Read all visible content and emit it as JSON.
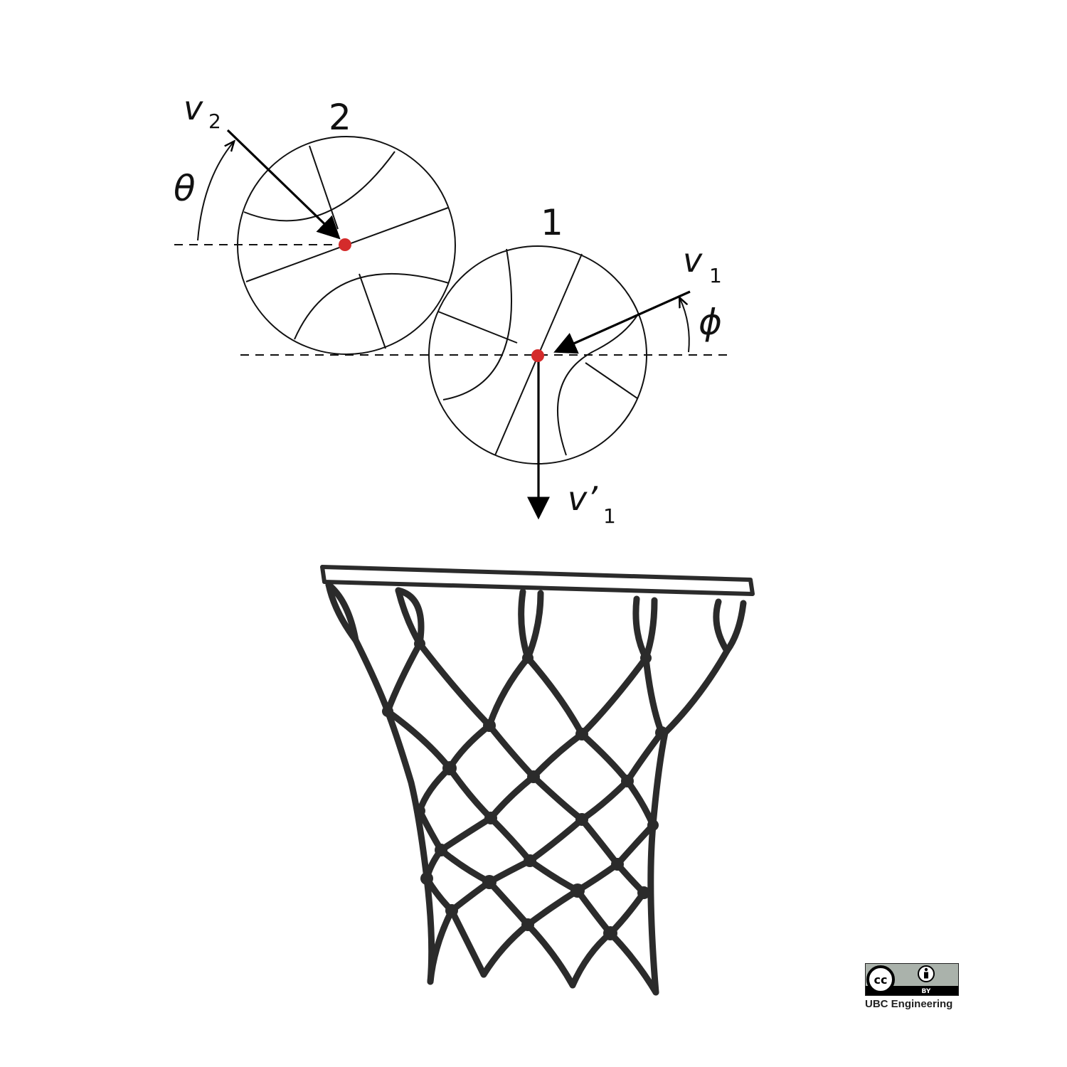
{
  "diagram": {
    "ball_labels": {
      "ball_2": "2",
      "ball_1": "1"
    },
    "vectors": {
      "v2": {
        "main": "v",
        "sub": "2"
      },
      "v1": {
        "main": "v",
        "sub": "1"
      },
      "v1_prime": {
        "main": "v’",
        "sub": "1"
      }
    },
    "angles": {
      "theta": "θ",
      "phi": "ϕ"
    },
    "colors": {
      "ink": "#111111",
      "center_dot": "#d42b2b",
      "net": "#2b2b2b"
    }
  },
  "license": {
    "badge_left": "cc",
    "badge_right_icon": "attribution-person-icon",
    "badge_by": "BY",
    "caption": "UBC Engineering"
  }
}
